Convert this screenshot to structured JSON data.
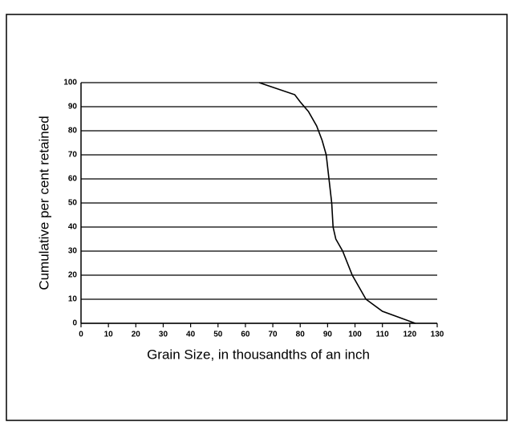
{
  "chart_data": {
    "type": "line",
    "xlabel": "Grain Size, in thousandths of an inch",
    "ylabel": "Cumulative per cent retained",
    "x": [
      65,
      78,
      80,
      83,
      86,
      88,
      89.5,
      90.5,
      91.5,
      92,
      93,
      95.5,
      99,
      104,
      110,
      116,
      122
    ],
    "series": [
      {
        "color": "#000000",
        "values": [
          100,
          95,
          92,
          88,
          82,
          76,
          70,
          60,
          50,
          40,
          35,
          30,
          20,
          10,
          5,
          2.5,
          0
        ]
      }
    ],
    "xlim": [
      0,
      130
    ],
    "xticks": [
      0,
      10,
      20,
      30,
      40,
      50,
      60,
      70,
      80,
      90,
      100,
      110,
      120,
      130
    ],
    "ylim": [
      0,
      100
    ],
    "yticks": [
      0,
      10,
      20,
      30,
      40,
      50,
      60,
      70,
      80,
      90,
      100
    ],
    "grid": true
  }
}
